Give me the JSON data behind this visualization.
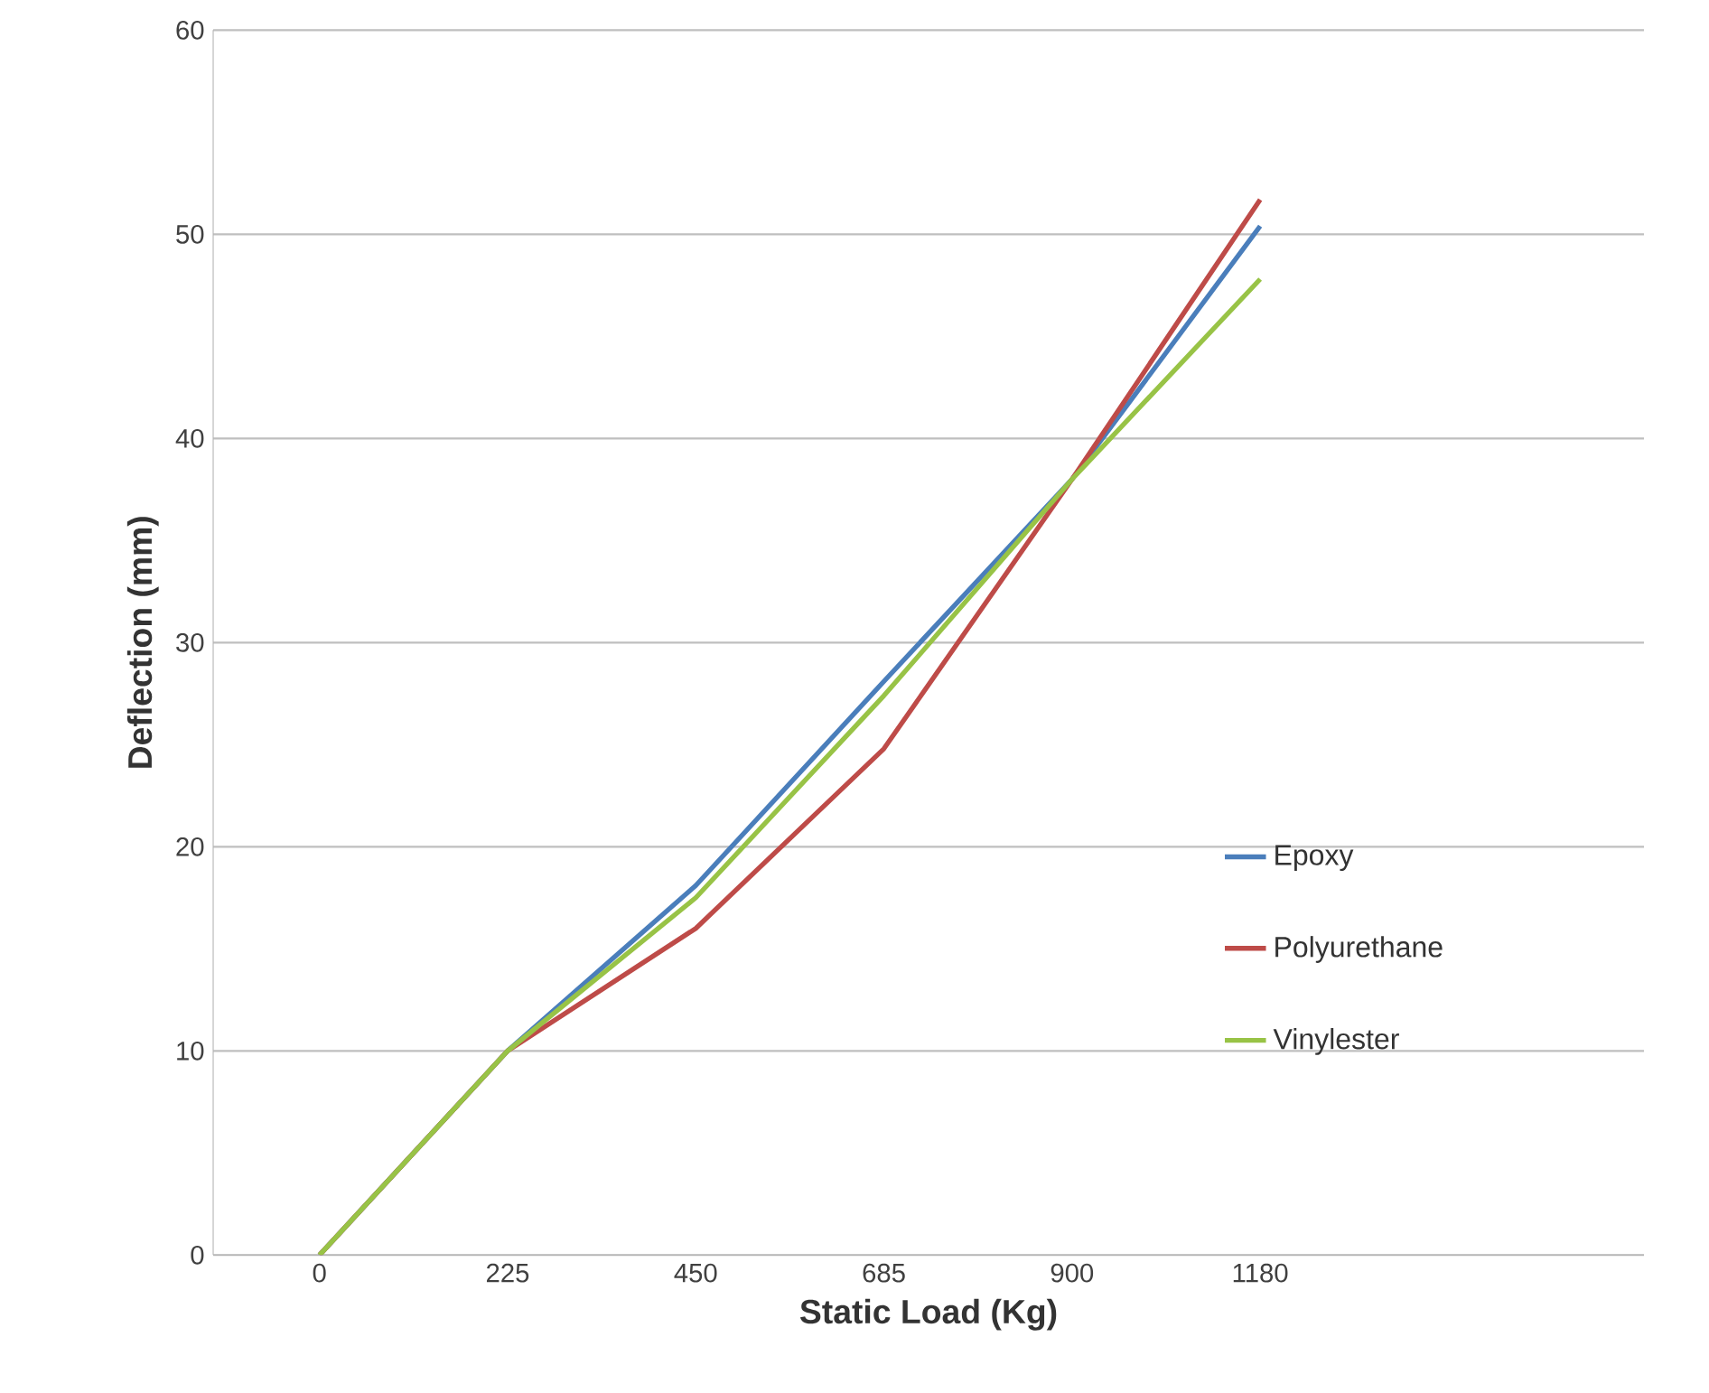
{
  "chart_data": {
    "type": "line",
    "xlabel": "Static Load (Kg)",
    "ylabel": "Deflection (mm)",
    "categories": [
      "0",
      "225",
      "450",
      "685",
      "900",
      "1180"
    ],
    "series": [
      {
        "name": "Epoxy",
        "color": "#4a7ebb",
        "values": [
          0,
          10,
          18.1,
          28.1,
          38,
          50.4
        ]
      },
      {
        "name": "Polyurethane",
        "color": "#be4b48",
        "values": [
          0,
          10,
          16,
          24.8,
          38,
          51.7
        ]
      },
      {
        "name": "Vinylester",
        "color": "#98c346",
        "values": [
          0,
          10,
          17.5,
          27.4,
          38,
          47.8
        ]
      }
    ],
    "ylim": [
      0,
      60
    ],
    "yticks": [
      0,
      10,
      20,
      30,
      40,
      50,
      60
    ],
    "grid": "y",
    "legend": "right",
    "marker": "none",
    "line_style": "solid"
  }
}
